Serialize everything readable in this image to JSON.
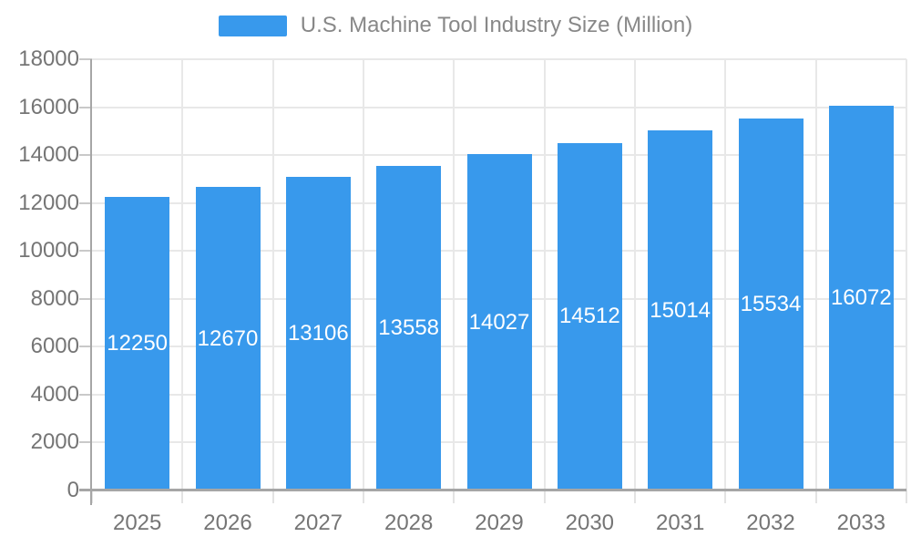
{
  "chart_data": {
    "type": "bar",
    "title": "U.S. Machine Tool Industry Size (Million)",
    "series_name": "U.S. Machine Tool Industry Size (Million)",
    "categories": [
      "2025",
      "2026",
      "2027",
      "2028",
      "2029",
      "2030",
      "2031",
      "2032",
      "2033"
    ],
    "values": [
      12250,
      12670,
      13106,
      13558,
      14027,
      14512,
      15014,
      15534,
      16072
    ],
    "xlabel": "",
    "ylabel": "",
    "ylim": [
      0,
      18000
    ],
    "ytick_step": 2000,
    "yticks": [
      0,
      2000,
      4000,
      6000,
      8000,
      10000,
      12000,
      14000,
      16000,
      18000
    ],
    "grid": true,
    "legend_position": "top-center",
    "bar_label_position": "inside-middle",
    "colors": {
      "bar": "#3899EC",
      "bar_label": "#ffffff",
      "axis_text": "#757575",
      "legend_text": "#888888",
      "gridline": "#e8e8e8",
      "axis_line": "#a6a6a6",
      "tick_y": "#c9c9c9",
      "tick_x": "#e3e3e3",
      "background": "#ffffff"
    }
  }
}
